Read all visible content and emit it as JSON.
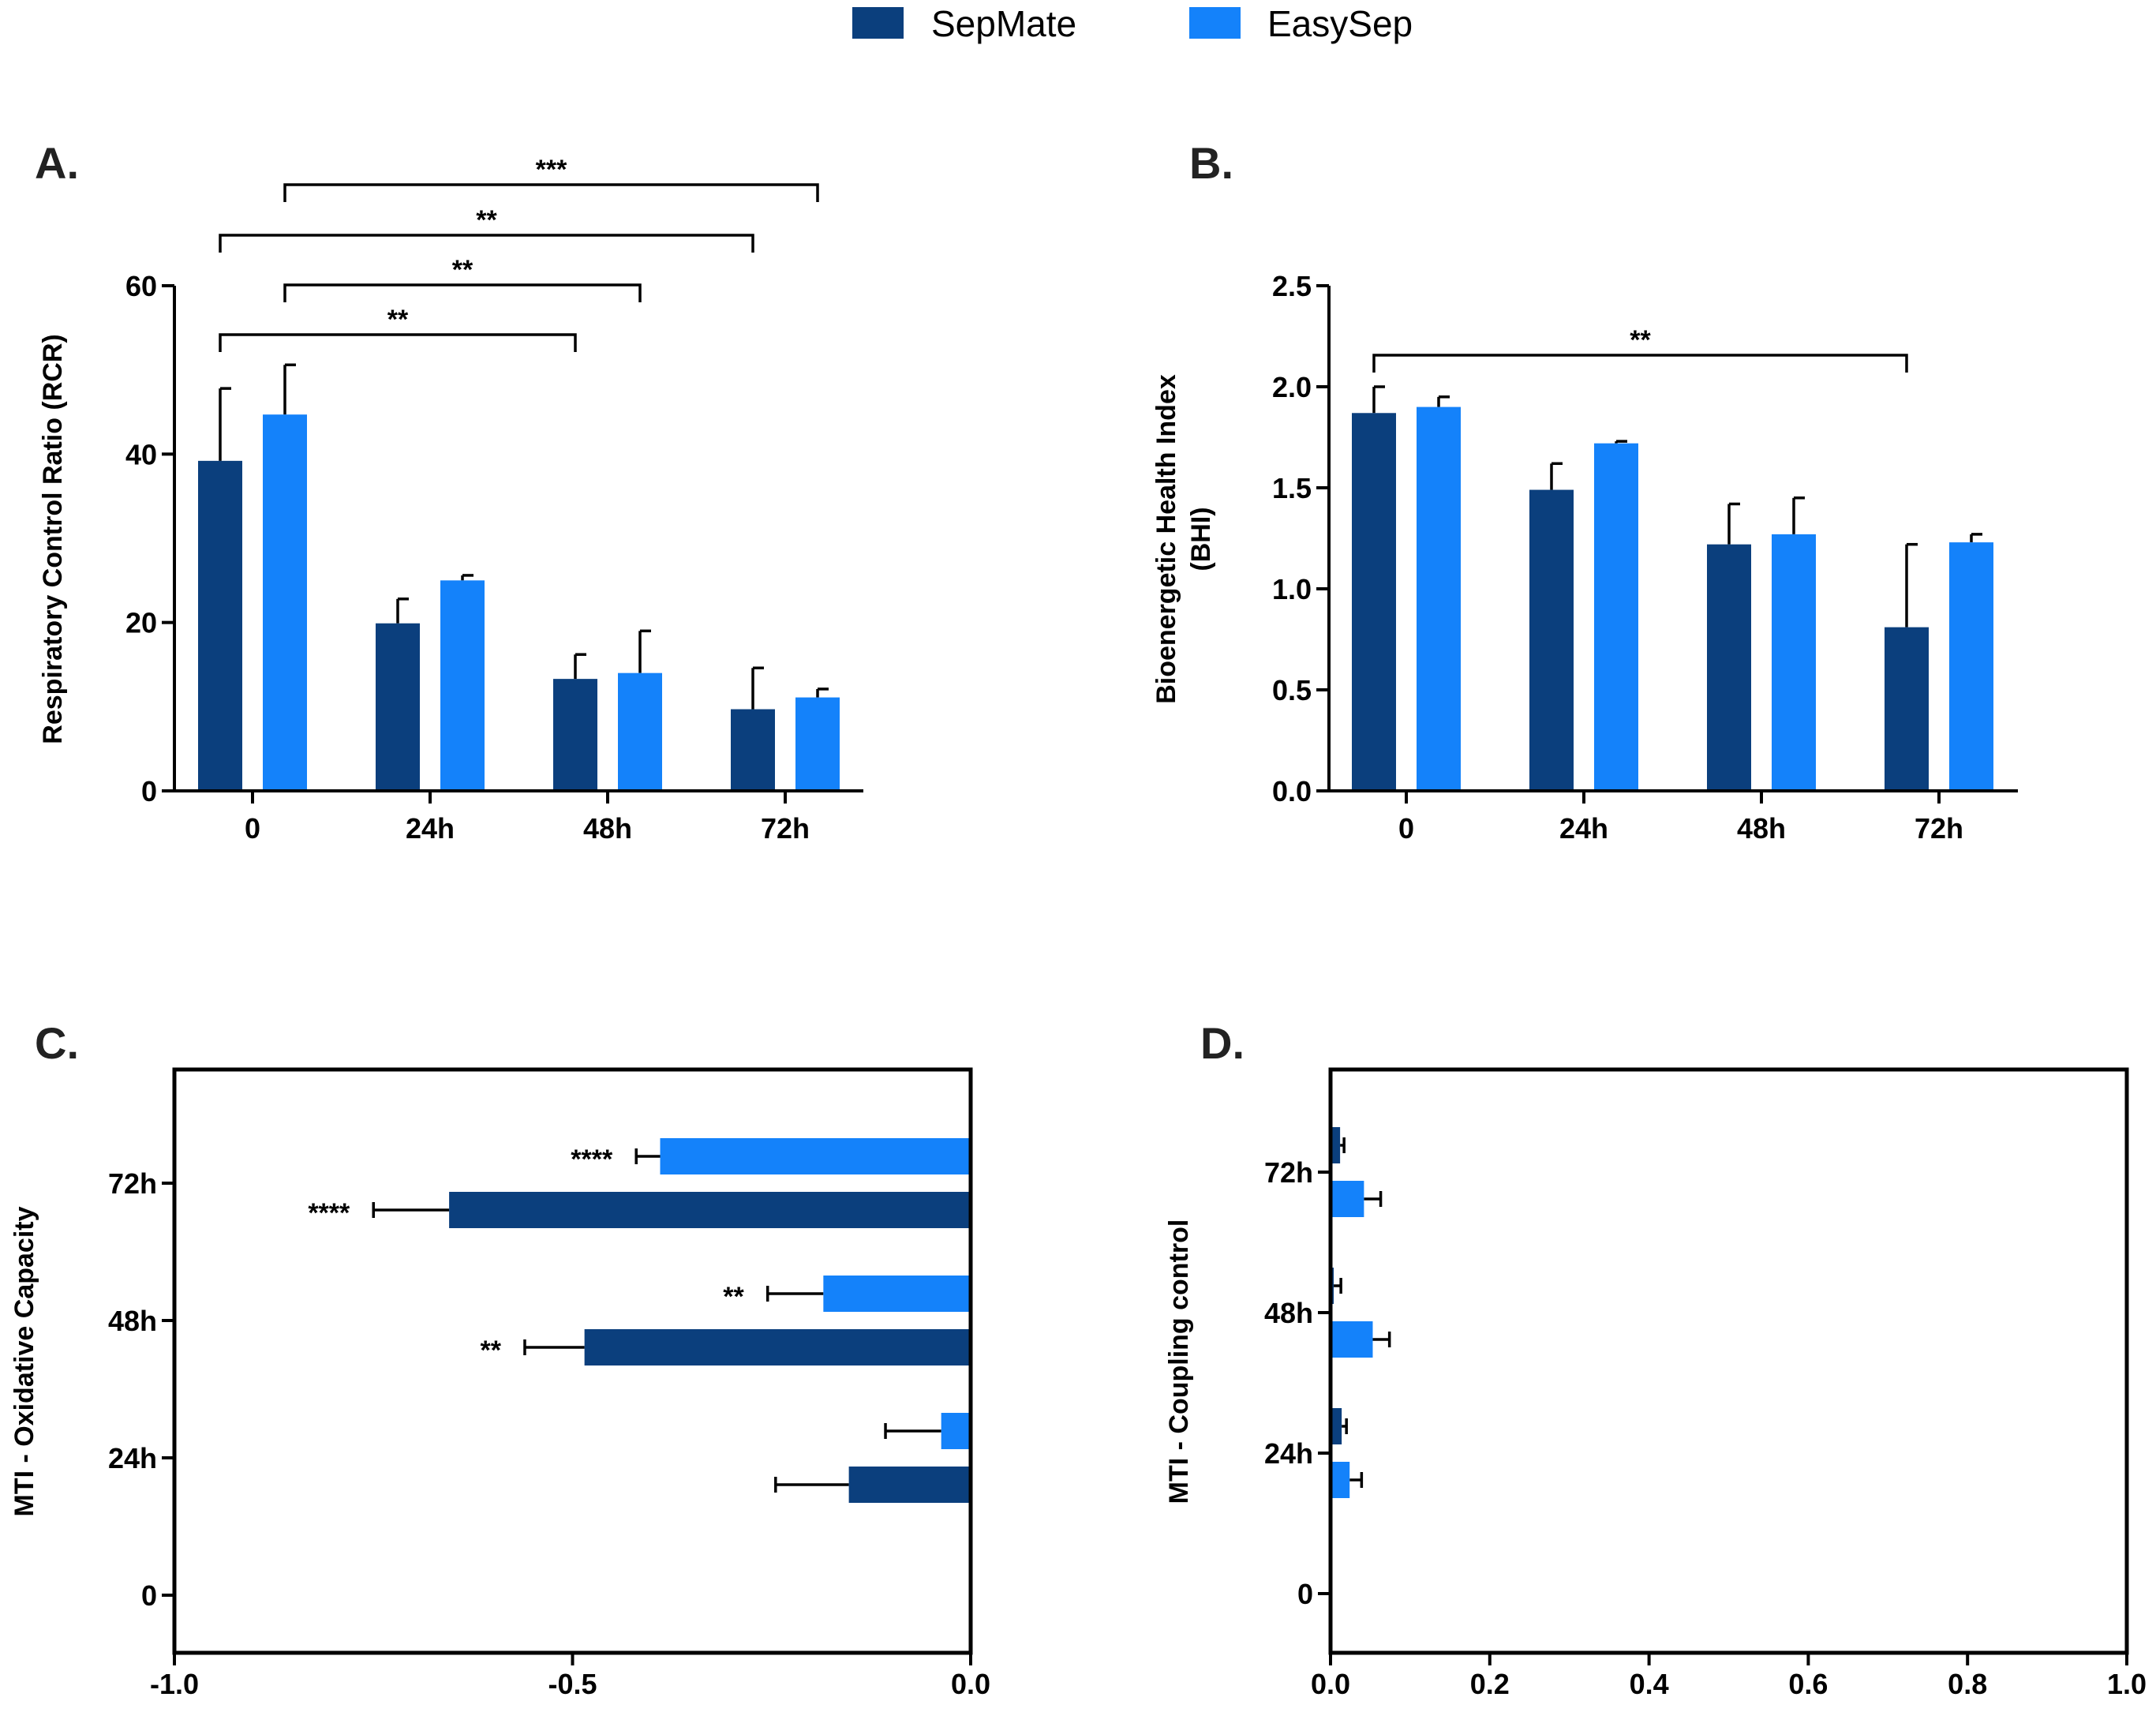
{
  "legend": {
    "items": [
      {
        "label": "SepMate",
        "color": "#0B3F7D"
      },
      {
        "label": "EasySep",
        "color": "#1482FA"
      }
    ]
  },
  "chart_data": [
    {
      "panel_label": "A.",
      "type": "bar",
      "categories": [
        "0",
        "24h",
        "48h",
        "72h"
      ],
      "ylabel": "Respiratory Control Ratio (RCR)",
      "ylim": [
        0,
        60
      ],
      "ytick_labels": [
        "0",
        "20",
        "40",
        "60"
      ],
      "series": [
        {
          "name": "SepMate",
          "values": [
            39.2,
            19.9,
            13.3,
            9.7
          ],
          "error_upper": [
            47.8,
            22.8,
            16.2,
            14.6
          ]
        },
        {
          "name": "EasySep",
          "values": [
            44.7,
            25.0,
            14.0,
            11.1
          ],
          "error_upper": [
            50.6,
            25.6,
            19.0,
            12.1
          ]
        }
      ],
      "significance": [
        {
          "from": [
            1,
            0
          ],
          "to": [
            1,
            3
          ],
          "label": "***"
        },
        {
          "from": [
            0,
            0
          ],
          "to": [
            0,
            3
          ],
          "label": "**"
        },
        {
          "from": [
            1,
            0
          ],
          "to": [
            1,
            2
          ],
          "label": "**"
        },
        {
          "from": [
            0,
            0
          ],
          "to": [
            0,
            2
          ],
          "label": "**"
        }
      ]
    },
    {
      "panel_label": "B.",
      "type": "bar",
      "categories": [
        "0",
        "24h",
        "48h",
        "72h"
      ],
      "ylabel": [
        "Bioenergetic Health Index",
        "(BHI)"
      ],
      "ylim": [
        0,
        2.5
      ],
      "ytick_labels": [
        "0.0",
        "0.5",
        "1.0",
        "1.5",
        "2.0",
        "2.5"
      ],
      "series": [
        {
          "name": "SepMate",
          "values": [
            1.87,
            1.49,
            1.22,
            0.81
          ],
          "error_upper": [
            2.0,
            1.62,
            1.42,
            1.22
          ]
        },
        {
          "name": "EasySep",
          "values": [
            1.9,
            1.72,
            1.27,
            1.23
          ],
          "error_upper": [
            1.95,
            1.73,
            1.45,
            1.27
          ]
        }
      ],
      "significance": [
        {
          "from": [
            0,
            0
          ],
          "to": [
            0,
            3
          ],
          "label": "**"
        }
      ]
    },
    {
      "panel_label": "C.",
      "type": "hbar",
      "categories": [
        "0",
        "24h",
        "48h",
        "72h"
      ],
      "ylabel": "MTI - Oxidative Capacity",
      "xlim": [
        -1.0,
        0.0
      ],
      "xtick_labels": [
        "-1.0",
        "-0.5",
        "0.0"
      ],
      "top_series": "EasySep",
      "series": [
        {
          "name": "SepMate",
          "values": [
            null,
            -0.153,
            -0.485,
            -0.655
          ],
          "error_end": [
            null,
            -0.245,
            -0.56,
            -0.75
          ],
          "stars": [
            null,
            null,
            "**",
            "****"
          ]
        },
        {
          "name": "EasySep",
          "values": [
            null,
            -0.037,
            -0.185,
            -0.39
          ],
          "error_end": [
            null,
            -0.107,
            -0.255,
            -0.42
          ],
          "stars": [
            null,
            null,
            "**",
            "****"
          ]
        }
      ]
    },
    {
      "panel_label": "D.",
      "type": "hbar",
      "categories": [
        "0",
        "24h",
        "48h",
        "72h"
      ],
      "ylabel": "MTI - Coupling control",
      "xlim": [
        0.0,
        1.0
      ],
      "xtick_labels": [
        "0.0",
        "0.2",
        "0.4",
        "0.6",
        "0.8",
        "1.0"
      ],
      "top_series": "SepMate",
      "series": [
        {
          "name": "SepMate",
          "values": [
            null,
            0.014,
            0.004,
            0.012
          ],
          "error_end": [
            null,
            0.02,
            0.013,
            0.017
          ],
          "stars": [
            null,
            null,
            null,
            null
          ]
        },
        {
          "name": "EasySep",
          "values": [
            null,
            0.024,
            0.053,
            0.042
          ],
          "error_end": [
            null,
            0.039,
            0.074,
            0.063
          ],
          "stars": [
            null,
            null,
            null,
            null
          ]
        }
      ]
    }
  ]
}
